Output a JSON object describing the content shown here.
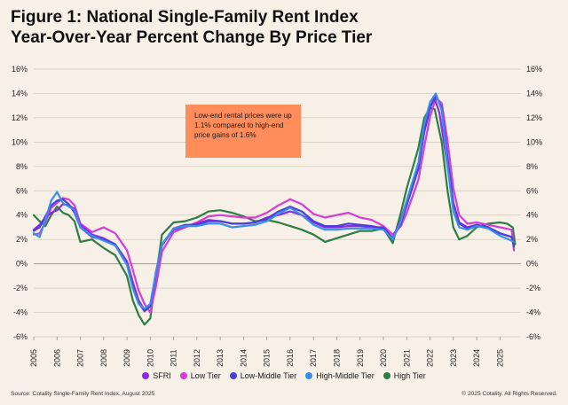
{
  "title_line1": "Figure 1: National Single-Family Rent Index",
  "title_line2": "Year-Over-Year Percent Change By Price Tier",
  "annotation": "Low-end rental prices were up 1.1% compared to high-end price gains of 1.6%",
  "source": "Source: Cotality Single-Family Rent Index, August 2025",
  "copyright": "© 2025 Cotality. All Rights Reserved.",
  "colors": {
    "SFRI": "#8b2be2",
    "Low Tier": "#d63cd6",
    "Low-Middle Tier": "#4a3fd8",
    "High-Middle Tier": "#3a8ee8",
    "High Tier": "#2e7d44",
    "annotation_bg": "#ff8c5a",
    "background": "#f6f0e6"
  },
  "chart_data": {
    "type": "line",
    "x_ticks": [
      "2005",
      "2006",
      "2007",
      "2008",
      "2009",
      "2010",
      "2011",
      "2012",
      "2013",
      "2014",
      "2015",
      "2016",
      "2017",
      "2018",
      "2019",
      "2020",
      "2021",
      "2022",
      "2023",
      "2024",
      "2025"
    ],
    "y_ticks": [
      "-6%",
      "-4%",
      "-2%",
      "0%",
      "2%",
      "4%",
      "6%",
      "8%",
      "10%",
      "12%",
      "14%",
      "16%"
    ],
    "ylim": [
      -6,
      16
    ],
    "xlim": [
      2005,
      2025.9
    ],
    "grid": true,
    "legend_position": "bottom",
    "series": [
      {
        "name": "SFRI",
        "points": [
          [
            2005,
            2.8
          ],
          [
            2005.25,
            3.2
          ],
          [
            2005.5,
            3.8
          ],
          [
            2005.75,
            4.2
          ],
          [
            2006,
            4.4
          ],
          [
            2006.25,
            4.9
          ],
          [
            2006.5,
            4.8
          ],
          [
            2006.75,
            4.5
          ],
          [
            2007,
            3.2
          ],
          [
            2007.5,
            2.4
          ],
          [
            2008,
            2.1
          ],
          [
            2008.5,
            1.6
          ],
          [
            2009,
            0.2
          ],
          [
            2009.25,
            -1.5
          ],
          [
            2009.5,
            -3.0
          ],
          [
            2009.75,
            -3.8
          ],
          [
            2010,
            -3.4
          ],
          [
            2010.25,
            -0.6
          ],
          [
            2010.5,
            1.6
          ],
          [
            2011,
            2.8
          ],
          [
            2011.5,
            3.1
          ],
          [
            2012,
            3.3
          ],
          [
            2012.5,
            3.6
          ],
          [
            2013,
            3.5
          ],
          [
            2013.5,
            3.3
          ],
          [
            2014,
            3.3
          ],
          [
            2014.5,
            3.4
          ],
          [
            2015,
            3.8
          ],
          [
            2015.5,
            4.0
          ],
          [
            2016,
            4.3
          ],
          [
            2016.5,
            4.0
          ],
          [
            2017,
            3.4
          ],
          [
            2017.5,
            3.0
          ],
          [
            2018,
            3.0
          ],
          [
            2018.5,
            3.1
          ],
          [
            2019,
            3.1
          ],
          [
            2019.5,
            3.0
          ],
          [
            2020,
            3.0
          ],
          [
            2020.4,
            2.1
          ],
          [
            2020.75,
            3.6
          ],
          [
            2021,
            5.2
          ],
          [
            2021.5,
            8.2
          ],
          [
            2021.75,
            11.2
          ],
          [
            2022,
            12.9
          ],
          [
            2022.2,
            13.6
          ],
          [
            2022.4,
            12.4
          ],
          [
            2022.75,
            8.0
          ],
          [
            2023,
            5.0
          ],
          [
            2023.25,
            3.4
          ],
          [
            2023.6,
            3.0
          ],
          [
            2024,
            3.2
          ],
          [
            2024.5,
            3.0
          ],
          [
            2025,
            2.5
          ],
          [
            2025.5,
            2.2
          ],
          [
            2025.6,
            1.5
          ]
        ]
      },
      {
        "name": "Low Tier",
        "points": [
          [
            2005,
            2.4
          ],
          [
            2005.25,
            2.5
          ],
          [
            2005.5,
            3.4
          ],
          [
            2005.75,
            4.6
          ],
          [
            2006,
            5.0
          ],
          [
            2006.25,
            5.4
          ],
          [
            2006.5,
            5.3
          ],
          [
            2006.75,
            4.8
          ],
          [
            2007,
            3.3
          ],
          [
            2007.5,
            2.6
          ],
          [
            2008,
            3.0
          ],
          [
            2008.5,
            2.5
          ],
          [
            2009,
            1.1
          ],
          [
            2009.25,
            -0.5
          ],
          [
            2009.5,
            -2.2
          ],
          [
            2009.75,
            -3.3
          ],
          [
            2010,
            -4.0
          ],
          [
            2010.25,
            -1.8
          ],
          [
            2010.5,
            1.0
          ],
          [
            2011,
            2.6
          ],
          [
            2011.5,
            3.0
          ],
          [
            2012,
            3.4
          ],
          [
            2012.5,
            3.9
          ],
          [
            2013,
            4.0
          ],
          [
            2013.5,
            3.9
          ],
          [
            2014,
            3.8
          ],
          [
            2014.5,
            3.8
          ],
          [
            2015,
            4.2
          ],
          [
            2015.5,
            4.8
          ],
          [
            2016,
            5.3
          ],
          [
            2016.5,
            4.9
          ],
          [
            2017,
            4.1
          ],
          [
            2017.5,
            3.8
          ],
          [
            2018,
            4.0
          ],
          [
            2018.5,
            4.2
          ],
          [
            2019,
            3.8
          ],
          [
            2019.5,
            3.6
          ],
          [
            2020,
            3.1
          ],
          [
            2020.4,
            2.4
          ],
          [
            2020.75,
            3.1
          ],
          [
            2021,
            4.2
          ],
          [
            2021.5,
            6.9
          ],
          [
            2021.75,
            9.6
          ],
          [
            2022,
            12.1
          ],
          [
            2022.25,
            13.6
          ],
          [
            2022.5,
            13.2
          ],
          [
            2022.75,
            10.1
          ],
          [
            2023,
            6.2
          ],
          [
            2023.25,
            4.0
          ],
          [
            2023.6,
            3.3
          ],
          [
            2024,
            3.4
          ],
          [
            2024.5,
            3.2
          ],
          [
            2025,
            3.0
          ],
          [
            2025.5,
            2.8
          ],
          [
            2025.6,
            1.1
          ]
        ]
      },
      {
        "name": "Low-Middle Tier",
        "points": [
          [
            2005,
            2.7
          ],
          [
            2005.25,
            3.0
          ],
          [
            2005.5,
            3.9
          ],
          [
            2005.75,
            4.8
          ],
          [
            2006,
            5.2
          ],
          [
            2006.25,
            5.3
          ],
          [
            2006.5,
            4.9
          ],
          [
            2006.75,
            4.2
          ],
          [
            2007,
            3.0
          ],
          [
            2007.5,
            2.2
          ],
          [
            2008,
            2.0
          ],
          [
            2008.5,
            1.6
          ],
          [
            2009,
            0.0
          ],
          [
            2009.25,
            -1.8
          ],
          [
            2009.5,
            -3.2
          ],
          [
            2009.75,
            -3.9
          ],
          [
            2010,
            -3.5
          ],
          [
            2010.25,
            -0.8
          ],
          [
            2010.5,
            1.5
          ],
          [
            2011,
            2.9
          ],
          [
            2011.5,
            3.2
          ],
          [
            2012,
            3.2
          ],
          [
            2012.5,
            3.5
          ],
          [
            2013,
            3.5
          ],
          [
            2013.5,
            3.3
          ],
          [
            2014,
            3.3
          ],
          [
            2014.5,
            3.4
          ],
          [
            2015,
            3.7
          ],
          [
            2015.5,
            4.3
          ],
          [
            2016,
            4.7
          ],
          [
            2016.5,
            4.3
          ],
          [
            2017,
            3.5
          ],
          [
            2017.5,
            3.1
          ],
          [
            2018,
            3.1
          ],
          [
            2018.5,
            3.3
          ],
          [
            2019,
            3.2
          ],
          [
            2019.5,
            3.1
          ],
          [
            2020,
            2.9
          ],
          [
            2020.4,
            2.1
          ],
          [
            2020.75,
            3.3
          ],
          [
            2021,
            4.8
          ],
          [
            2021.5,
            7.8
          ],
          [
            2021.75,
            10.8
          ],
          [
            2022,
            12.8
          ],
          [
            2022.25,
            13.9
          ],
          [
            2022.5,
            12.8
          ],
          [
            2022.75,
            8.7
          ],
          [
            2023,
            5.0
          ],
          [
            2023.25,
            3.3
          ],
          [
            2023.6,
            2.9
          ],
          [
            2024,
            3.2
          ],
          [
            2024.5,
            3.0
          ],
          [
            2025,
            2.5
          ],
          [
            2025.5,
            2.2
          ],
          [
            2025.6,
            1.4
          ]
        ]
      },
      {
        "name": "High-Middle Tier",
        "points": [
          [
            2005,
            2.5
          ],
          [
            2005.25,
            2.2
          ],
          [
            2005.5,
            3.6
          ],
          [
            2005.75,
            5.2
          ],
          [
            2006,
            5.9
          ],
          [
            2006.25,
            5.0
          ],
          [
            2006.5,
            4.7
          ],
          [
            2006.75,
            4.4
          ],
          [
            2007,
            3.0
          ],
          [
            2007.5,
            2.3
          ],
          [
            2008,
            1.9
          ],
          [
            2008.5,
            1.5
          ],
          [
            2009,
            -0.1
          ],
          [
            2009.25,
            -2.0
          ],
          [
            2009.5,
            -3.3
          ],
          [
            2009.75,
            -3.7
          ],
          [
            2010,
            -3.3
          ],
          [
            2010.25,
            -0.7
          ],
          [
            2010.5,
            1.6
          ],
          [
            2011,
            2.9
          ],
          [
            2011.5,
            3.1
          ],
          [
            2012,
            3.1
          ],
          [
            2012.5,
            3.3
          ],
          [
            2013,
            3.3
          ],
          [
            2013.5,
            3.0
          ],
          [
            2014,
            3.1
          ],
          [
            2014.5,
            3.2
          ],
          [
            2015,
            3.5
          ],
          [
            2015.5,
            4.1
          ],
          [
            2016,
            4.6
          ],
          [
            2016.5,
            4.0
          ],
          [
            2017,
            3.2
          ],
          [
            2017.5,
            2.8
          ],
          [
            2018,
            2.8
          ],
          [
            2018.5,
            2.9
          ],
          [
            2019,
            2.9
          ],
          [
            2019.5,
            2.9
          ],
          [
            2020,
            2.8
          ],
          [
            2020.4,
            2.0
          ],
          [
            2020.75,
            3.5
          ],
          [
            2021,
            5.2
          ],
          [
            2021.5,
            8.3
          ],
          [
            2021.75,
            11.5
          ],
          [
            2022,
            13.3
          ],
          [
            2022.25,
            14.0
          ],
          [
            2022.5,
            12.6
          ],
          [
            2022.75,
            8.0
          ],
          [
            2023,
            4.3
          ],
          [
            2023.25,
            3.0
          ],
          [
            2023.6,
            2.8
          ],
          [
            2024,
            3.1
          ],
          [
            2024.5,
            2.9
          ],
          [
            2025,
            2.3
          ],
          [
            2025.5,
            1.9
          ],
          [
            2025.6,
            1.8
          ]
        ]
      },
      {
        "name": "High Tier",
        "points": [
          [
            2005,
            4.0
          ],
          [
            2005.25,
            3.5
          ],
          [
            2005.5,
            3.1
          ],
          [
            2005.75,
            4.0
          ],
          [
            2006,
            4.7
          ],
          [
            2006.25,
            4.2
          ],
          [
            2006.5,
            4.0
          ],
          [
            2006.75,
            3.5
          ],
          [
            2007,
            1.8
          ],
          [
            2007.5,
            2.0
          ],
          [
            2008,
            1.3
          ],
          [
            2008.5,
            0.7
          ],
          [
            2009,
            -1.0
          ],
          [
            2009.25,
            -3.0
          ],
          [
            2009.5,
            -4.2
          ],
          [
            2009.75,
            -5.0
          ],
          [
            2010,
            -4.5
          ],
          [
            2010.25,
            -1.0
          ],
          [
            2010.5,
            2.4
          ],
          [
            2011,
            3.4
          ],
          [
            2011.5,
            3.5
          ],
          [
            2012,
            3.8
          ],
          [
            2012.5,
            4.3
          ],
          [
            2013,
            4.4
          ],
          [
            2013.5,
            4.2
          ],
          [
            2014,
            3.9
          ],
          [
            2014.5,
            3.5
          ],
          [
            2015,
            3.6
          ],
          [
            2015.5,
            3.4
          ],
          [
            2016,
            3.1
          ],
          [
            2016.5,
            2.8
          ],
          [
            2017,
            2.4
          ],
          [
            2017.5,
            1.8
          ],
          [
            2018,
            2.1
          ],
          [
            2018.5,
            2.4
          ],
          [
            2019,
            2.7
          ],
          [
            2019.5,
            2.7
          ],
          [
            2020,
            2.9
          ],
          [
            2020.4,
            1.7
          ],
          [
            2020.75,
            4.2
          ],
          [
            2021,
            6.2
          ],
          [
            2021.5,
            9.5
          ],
          [
            2021.75,
            12.0
          ],
          [
            2022,
            12.8
          ],
          [
            2022.2,
            12.7
          ],
          [
            2022.5,
            10.0
          ],
          [
            2022.75,
            6.0
          ],
          [
            2023,
            3.0
          ],
          [
            2023.25,
            2.0
          ],
          [
            2023.6,
            2.3
          ],
          [
            2024,
            3.0
          ],
          [
            2024.5,
            3.3
          ],
          [
            2025,
            3.4
          ],
          [
            2025.3,
            3.3
          ],
          [
            2025.55,
            3.0
          ],
          [
            2025.65,
            1.6
          ]
        ]
      }
    ]
  }
}
